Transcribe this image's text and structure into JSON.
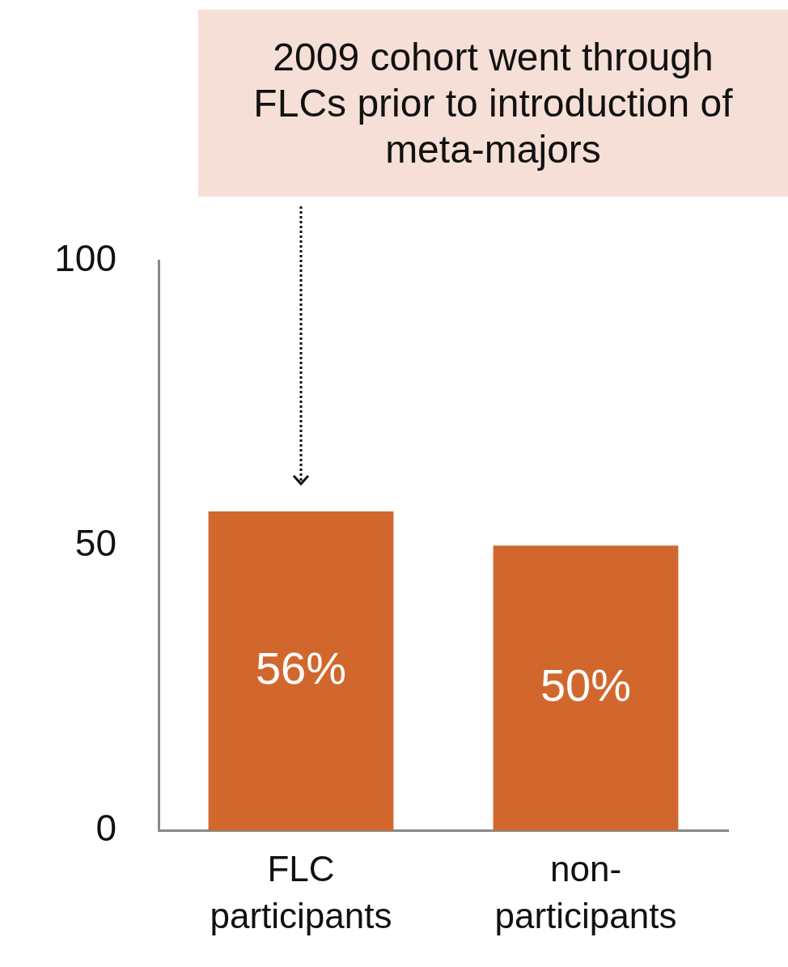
{
  "chart_data": {
    "type": "bar",
    "categories": [
      "FLC participants",
      "non-participants"
    ],
    "values": [
      56,
      50
    ],
    "value_labels": [
      "56%",
      "50%"
    ],
    "color": "#d2672e",
    "ylim": [
      0,
      100
    ],
    "yticks": [
      0,
      50,
      100
    ],
    "grid": false,
    "legend": false,
    "annotations": [
      "2009 cohort went through\nFLCs prior to introduction of\nmeta-majors"
    ]
  }
}
